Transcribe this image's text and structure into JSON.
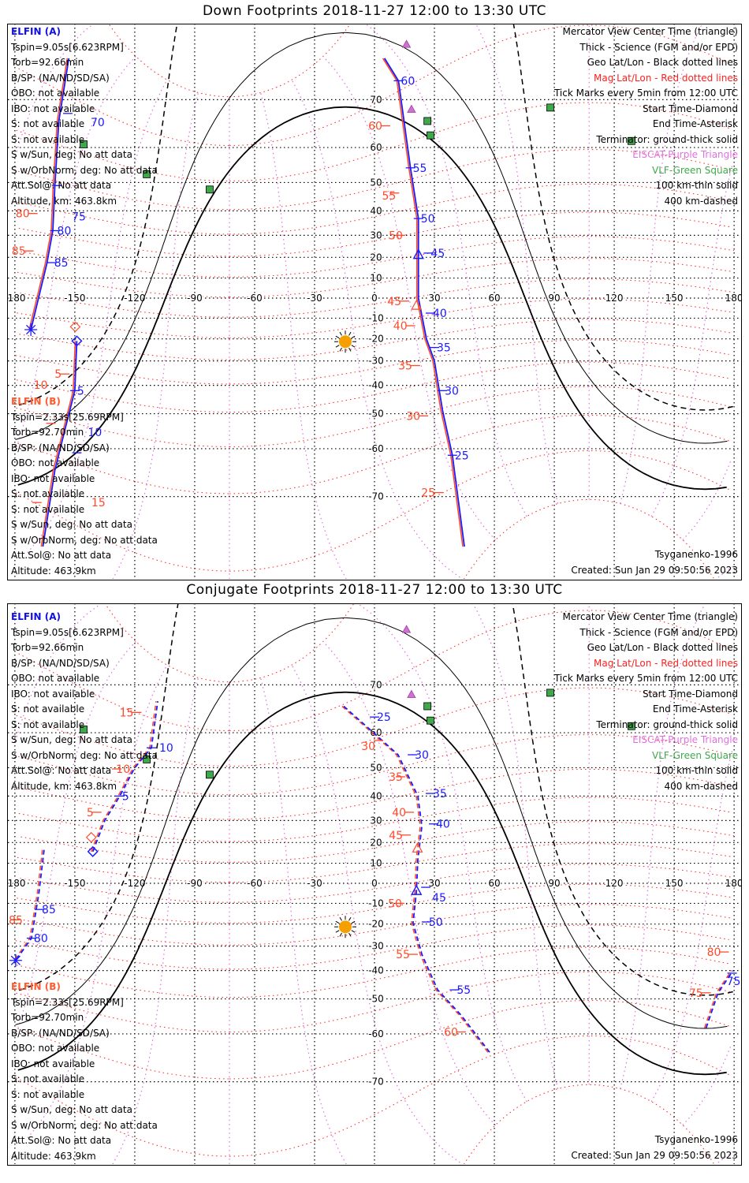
{
  "colors": {
    "blue": "#1a1aff",
    "red": "#ff4a2a",
    "mag": "#ff2020",
    "magpole": "#e070e0",
    "vlf": "#3fa84a",
    "eiscat": "#d070d0",
    "sun": "#f5a000",
    "grid": "#000000"
  },
  "info_a": {
    "header": "ELFIN (A)",
    "lines": [
      "Tspin=9.05s[6.623RPM]",
      "Torb=92.66min",
      "B/SP: (NA/ND/SD/SA)",
      "OBO: not available",
      "IBO: not available",
      "S: not available",
      "S: not available",
      "S w/Sun, deg: No att data",
      "S w/OrbNorm, deg: No att data",
      "Att.Sol@: No att data",
      "Altitude, km: 463.8km"
    ]
  },
  "info_b": {
    "header": "ELFIN (B)",
    "lines": [
      "Tspin=2.33s[25.69RPM]",
      "Torb=92.70min",
      "B/SP: (NA/ND/SD/SA)",
      "OBO: not available",
      "IBO: not available",
      "S: not available",
      "S: not available",
      "S w/Sun, deg: No att data",
      "S w/OrbNorm, deg: No att data",
      "Att.Sol@: No att data",
      "Altitude: 463.9km"
    ]
  },
  "legend": [
    {
      "text": "Mercator View Center Time (triangle)",
      "color": "#000000"
    },
    {
      "text": "Thick - Science (FGM and/or EPD)",
      "color": "#000000"
    },
    {
      "text": "Geo Lat/Lon - Black dotted lines",
      "color": "#000000"
    },
    {
      "text": "Mag Lat/Lon - Red dotted lines",
      "color": "#ff2020"
    },
    {
      "text": "Tick Marks every 5min from 12:00 UTC",
      "color": "#000000"
    },
    {
      "text": "Start Time-Diamond",
      "color": "#000000"
    },
    {
      "text": "End Time-Asterisk",
      "color": "#000000"
    },
    {
      "text": "Terminator: ground-thick solid",
      "color": "#000000"
    },
    {
      "text": "EISCAT-Purple Triangle",
      "color": "#e070e0"
    },
    {
      "text": "VLF-Green Square",
      "color": "#3fa84a"
    },
    {
      "text": "100 km-thin solid",
      "color": "#000000"
    },
    {
      "text": "400 km-dashed",
      "color": "#000000"
    }
  ],
  "model": "Tsyganenko-1996",
  "created": "Created: Sun Jan 29 09:50:56 2023",
  "lon_labels": [
    "-180",
    "-150",
    "-120",
    "-90",
    "-60",
    "-30",
    "0",
    "30",
    "60",
    "90",
    "120",
    "150",
    "180"
  ],
  "lat_labels": [
    "70",
    "60",
    "50",
    "40",
    "30",
    "20",
    "10",
    "-10",
    "-20",
    "-30",
    "-40",
    "-50",
    "-60",
    "-70"
  ],
  "sun": {
    "lon": -14.6,
    "lat": -21.3
  },
  "mag_pole": {
    "lat": 80.5,
    "lon": -72.6
  },
  "eiscat": [
    {
      "lon": 16,
      "lat": 77.6
    },
    {
      "lon": 18.5,
      "lat": 68.3
    }
  ],
  "vlf": [
    {
      "lon": 26.5,
      "lat": 66
    },
    {
      "lon": 28,
      "lat": 62.9
    },
    {
      "lon": 88,
      "lat": 68.6
    },
    {
      "lon": 128.6,
      "lat": 61.6
    },
    {
      "lon": -145.6,
      "lat": 60.8
    },
    {
      "lon": -114,
      "lat": 52.6
    },
    {
      "lon": -82.5,
      "lat": 47.7
    }
  ],
  "panels": [
    {
      "title": "Down Footprints 2018-11-27 12:00 to 13:30 UTC",
      "dashed": false,
      "tracks": [
        {
          "pts": [
            [
              -153,
              76
            ],
            [
              -158,
              66
            ],
            [
              -160,
              49
            ],
            [
              -161,
              32
            ],
            [
              -164,
              17
            ],
            [
              -172,
              -15.6
            ]
          ],
          "end": "asterisk"
        },
        {
          "pts": [
            [
              -149,
              -21
            ],
            [
              -150,
              -42
            ],
            [
              -155,
              -55
            ],
            [
              -160,
              -65
            ],
            [
              -166,
              -77
            ]
          ],
          "start": "diamond"
        },
        {
          "pts": [
            [
              5,
              76
            ],
            [
              12,
              73
            ],
            [
              18,
              54.5
            ],
            [
              22,
              37
            ],
            [
              22,
              21
            ],
            [
              22,
              0
            ],
            [
              26,
              -20
            ],
            [
              30,
              -30
            ],
            [
              34,
              -48.8
            ],
            [
              39,
              -61.6
            ],
            [
              45,
              -77
            ]
          ],
          "center": [
            22,
            21
          ],
          "center_red": [
            21,
            -4
          ]
        }
      ],
      "labels": [
        {
          "t": "70",
          "lon": -153.5,
          "lat": 67.5,
          "c": "blue"
        },
        {
          "t": "75",
          "lon": -159,
          "lat": 49,
          "c": "blue"
        },
        {
          "t": "80",
          "lon": -160,
          "lat": 32,
          "c": "blue"
        },
        {
          "t": "85",
          "lon": -161.5,
          "lat": 17.5,
          "c": "blue"
        },
        {
          "t": "80",
          "lon": -171,
          "lat": 39,
          "c": "red"
        },
        {
          "t": "85",
          "lon": -173,
          "lat": 23,
          "c": "red"
        },
        {
          "t": "5",
          "lon": -150,
          "lat": -42,
          "c": "blue"
        },
        {
          "t": "10",
          "lon": -149,
          "lat": -61,
          "c": "blue"
        },
        {
          "t": "5",
          "lon": -155,
          "lat": -35.5,
          "c": "red"
        },
        {
          "t": "10",
          "lon": -162,
          "lat": -53,
          "c": "red"
        },
        {
          "t": "15",
          "lon": -169,
          "lat": -71,
          "c": "red"
        },
        {
          "t": "60",
          "lon": 12,
          "lat": 73,
          "c": "blue"
        },
        {
          "t": "55",
          "lon": 18,
          "lat": 54.5,
          "c": "blue"
        },
        {
          "t": "50",
          "lon": 22,
          "lat": 37,
          "c": "blue"
        },
        {
          "t": "45",
          "lon": 27,
          "lat": 22,
          "c": "blue"
        },
        {
          "t": "40",
          "lon": 28,
          "lat": -7.5,
          "c": "blue"
        },
        {
          "t": "35",
          "lon": 30,
          "lat": -24,
          "c": "blue"
        },
        {
          "t": "30",
          "lon": 34,
          "lat": -42,
          "c": "blue"
        },
        {
          "t": "25",
          "lon": 39,
          "lat": -61.6,
          "c": "blue"
        },
        {
          "t": "60",
          "lon": 5.5,
          "lat": 65,
          "c": "red"
        },
        {
          "t": "55",
          "lon": 10,
          "lat": 46.5,
          "c": "red"
        },
        {
          "t": "50",
          "lon": 13,
          "lat": 30,
          "c": "red"
        },
        {
          "t": "45",
          "lon": 15,
          "lat": -1.5,
          "c": "red"
        },
        {
          "t": "40",
          "lon": 18,
          "lat": -13.7,
          "c": "red"
        },
        {
          "t": "35",
          "lon": 20.5,
          "lat": -32,
          "c": "red"
        },
        {
          "t": "30",
          "lon": 24.5,
          "lat": -50.7,
          "c": "red"
        },
        {
          "t": "25",
          "lon": 32,
          "lat": -69.3,
          "c": "red"
        }
      ]
    },
    {
      "title": "Conjugate Footprints 2018-11-27 12:00 to 13:30 UTC",
      "dashed": true,
      "tracks": [
        {
          "pts": [
            [
              -165.4,
              16.5
            ],
            [
              -168,
              -5
            ],
            [
              -171.7,
              -26.5
            ],
            [
              -179.6,
              -36
            ]
          ],
          "end": "asterisk"
        },
        {
          "pts": [
            [
              166,
              -58.5
            ],
            [
              172,
              -48
            ],
            [
              179.5,
              -40
            ]
          ]
        },
        {
          "pts": [
            [
              -141,
              15.7
            ],
            [
              -135,
              30
            ],
            [
              -127.5,
              40
            ],
            [
              -120,
              50
            ],
            [
              -111.7,
              56
            ],
            [
              -108.5,
              67
            ]
          ],
          "start": "diamond"
        },
        {
          "pts": [
            [
              -15.4,
              66
            ],
            [
              -3.9,
              61.5
            ],
            [
              11.8,
              54
            ],
            [
              21.7,
              40
            ],
            [
              23.7,
              27.5
            ],
            [
              21.7,
              12
            ],
            [
              21,
              -4
            ],
            [
              19.3,
              -19.5
            ],
            [
              23.7,
              -33.5
            ],
            [
              31.6,
              -47
            ],
            [
              43.4,
              -55
            ],
            [
              58,
              -64.5
            ]
          ],
          "center": [
            21,
            -4
          ],
          "center_red": [
            21.5,
            17
          ]
        }
      ],
      "labels": [
        {
          "t": "25",
          "lon": 0,
          "lat": 63.7,
          "c": "blue"
        },
        {
          "t": "30",
          "lon": 19,
          "lat": 54,
          "c": "blue"
        },
        {
          "t": "35",
          "lon": 28,
          "lat": 41,
          "c": "blue"
        },
        {
          "t": "40",
          "lon": 29.6,
          "lat": 28.5,
          "c": "blue"
        },
        {
          "t": "45",
          "lon": 25.7,
          "lat": -2,
          "c": "blue"
        },
        {
          "t": "50",
          "lon": 26,
          "lat": -19,
          "c": "blue"
        },
        {
          "t": "55",
          "lon": 40,
          "lat": -47,
          "c": "blue"
        },
        {
          "t": "30",
          "lon": 2,
          "lat": 58,
          "c": "red"
        },
        {
          "t": "35",
          "lon": 13,
          "lat": 47,
          "c": "red"
        },
        {
          "t": "40",
          "lon": 17.4,
          "lat": 33.5,
          "c": "red"
        },
        {
          "t": "45",
          "lon": 15.8,
          "lat": 23.5,
          "c": "red"
        },
        {
          "t": "50",
          "lon": 12.6,
          "lat": -10,
          "c": "red"
        },
        {
          "t": "55",
          "lon": 19.3,
          "lat": -33.5,
          "c": "red"
        },
        {
          "t": "60",
          "lon": 43.4,
          "lat": -59.5,
          "c": "red"
        },
        {
          "t": "85",
          "lon": -167.7,
          "lat": -13,
          "c": "blue"
        },
        {
          "t": "80",
          "lon": -171.7,
          "lat": -26.5,
          "c": "blue"
        },
        {
          "t": "85",
          "lon": -180,
          "lat": -18,
          "c": "red"
        },
        {
          "t": "80",
          "lon": 175,
          "lat": -32.5,
          "c": "red"
        },
        {
          "t": "75",
          "lon": 179,
          "lat": -41,
          "c": "blue"
        },
        {
          "t": "75",
          "lon": 166,
          "lat": -48,
          "c": "red"
        },
        {
          "t": "5",
          "lon": -127.5,
          "lat": 40,
          "c": "blue"
        },
        {
          "t": "10",
          "lon": -111.7,
          "lat": 56,
          "c": "blue"
        },
        {
          "t": "5",
          "lon": -139,
          "lat": 33.5,
          "c": "red"
        },
        {
          "t": "10",
          "lon": -129,
          "lat": 49.6,
          "c": "red"
        },
        {
          "t": "15",
          "lon": -119,
          "lat": 64.7,
          "c": "red"
        }
      ]
    }
  ]
}
